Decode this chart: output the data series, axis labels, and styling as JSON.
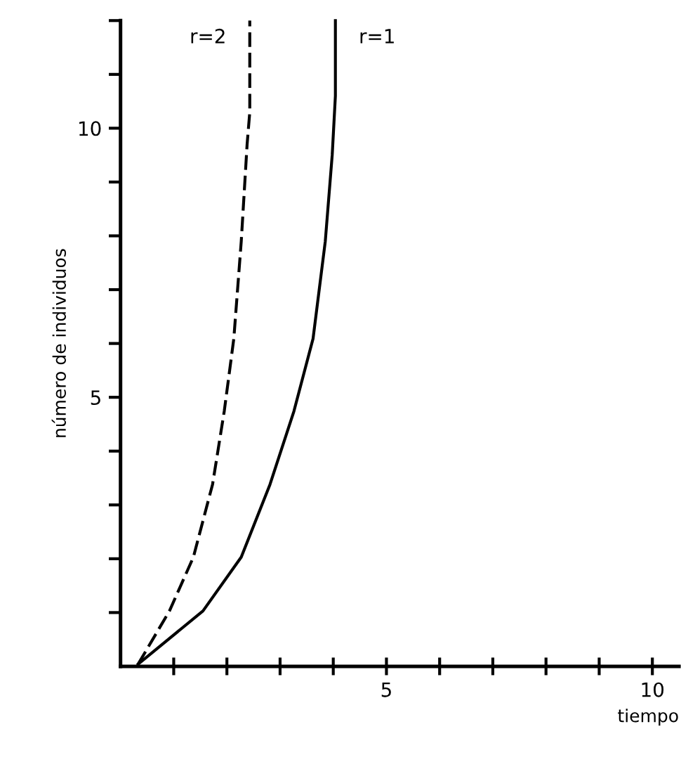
{
  "chart_data": {
    "type": "line",
    "xlabel": "tiempo",
    "ylabel": "número de individuos",
    "xlim": [
      0,
      10.5
    ],
    "ylim": [
      0,
      12
    ],
    "xticks": [
      {
        "value": 1,
        "label": null
      },
      {
        "value": 2,
        "label": null
      },
      {
        "value": 3,
        "label": null
      },
      {
        "value": 4,
        "label": null
      },
      5,
      {
        "value": 6,
        "label": null
      },
      {
        "value": 7,
        "label": null
      },
      {
        "value": 8,
        "label": null
      },
      {
        "value": 9,
        "label": null
      },
      10
    ],
    "yticks": [
      {
        "value": 1,
        "label": null
      },
      {
        "value": 2,
        "label": null
      },
      {
        "value": 3,
        "label": null
      },
      {
        "value": 4,
        "label": null
      },
      5,
      {
        "value": 6,
        "label": null
      },
      {
        "value": 7,
        "label": null
      },
      {
        "value": 8,
        "label": null
      },
      {
        "value": 9,
        "label": null
      },
      10,
      {
        "value": 11,
        "label": null
      },
      {
        "value": 12,
        "label": null
      }
    ],
    "grid": false,
    "legend": false,
    "marker": "none",
    "series": [
      {
        "name": "r=2",
        "color": "#000000",
        "line_style": "dashed",
        "x": [
          0.33,
          0.92,
          1.37,
          1.73,
          1.95,
          2.13,
          2.27,
          2.38,
          2.43,
          2.43
        ],
        "values": [
          0.04,
          1.03,
          2.03,
          3.38,
          4.74,
          6.09,
          7.9,
          9.7,
          10.3,
          12
        ]
      },
      {
        "name": "r=1",
        "color": "#000000",
        "line_style": "solid",
        "x": [
          0.33,
          1.55,
          2.27,
          2.81,
          3.26,
          3.62,
          3.85,
          3.98,
          4.04,
          4.04
        ],
        "values": [
          0.04,
          1.03,
          2.03,
          3.38,
          4.74,
          6.09,
          7.9,
          9.5,
          10.6,
          12
        ]
      }
    ]
  }
}
